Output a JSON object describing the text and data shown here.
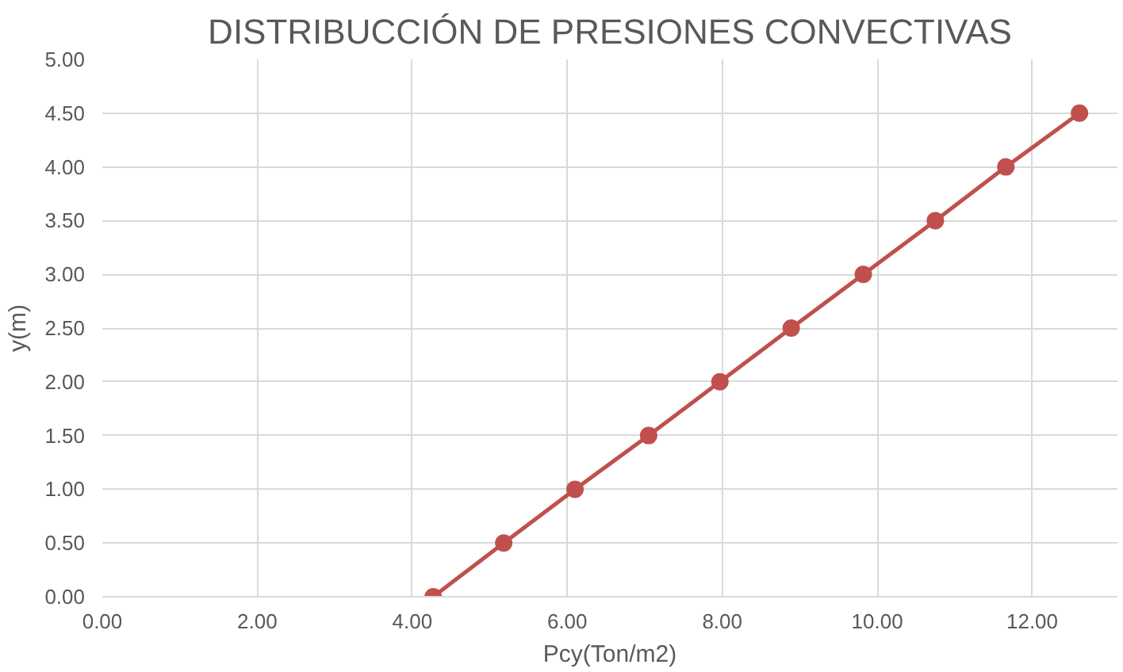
{
  "chart_data": {
    "type": "line",
    "title": "DISTRIBUCCIÓN DE PRESIONES CONVECTIVAS",
    "xlabel": "Pcy(Ton/m2)",
    "ylabel": "y(m)",
    "x": [
      4.27,
      5.18,
      6.1,
      7.05,
      7.97,
      8.89,
      9.82,
      10.75,
      11.66,
      12.61
    ],
    "series": [
      {
        "color": "#c0504d",
        "values": [
          0,
          0.5,
          1,
          1.5,
          2,
          2.5,
          3,
          3.5,
          4,
          4.5
        ]
      }
    ],
    "xlim": [
      0,
      13.1
    ],
    "xticks": [
      {
        "value": 0,
        "label": "0.00"
      },
      {
        "value": 2,
        "label": "2.00"
      },
      {
        "value": 4,
        "label": "4.00"
      },
      {
        "value": 6,
        "label": "6.00"
      },
      {
        "value": 8,
        "label": "8.00"
      },
      {
        "value": 10,
        "label": "10.00"
      },
      {
        "value": 12,
        "label": "12.00"
      }
    ],
    "ylim": [
      0,
      5
    ],
    "yticks": [
      {
        "value": 0,
        "label": "0.00"
      },
      {
        "value": 0.5,
        "label": "0.50"
      },
      {
        "value": 1,
        "label": "1.00"
      },
      {
        "value": 1.5,
        "label": "1.50"
      },
      {
        "value": 2,
        "label": "2.00"
      },
      {
        "value": 2.5,
        "label": "2.50"
      },
      {
        "value": 3,
        "label": "3.00"
      },
      {
        "value": 3.5,
        "label": "3.50"
      },
      {
        "value": 4,
        "label": "4.00"
      },
      {
        "value": 4.5,
        "label": "4.50"
      },
      {
        "value": 5,
        "label": "5.00"
      }
    ],
    "grid": true,
    "marker": "circle",
    "line_style": "solid"
  }
}
